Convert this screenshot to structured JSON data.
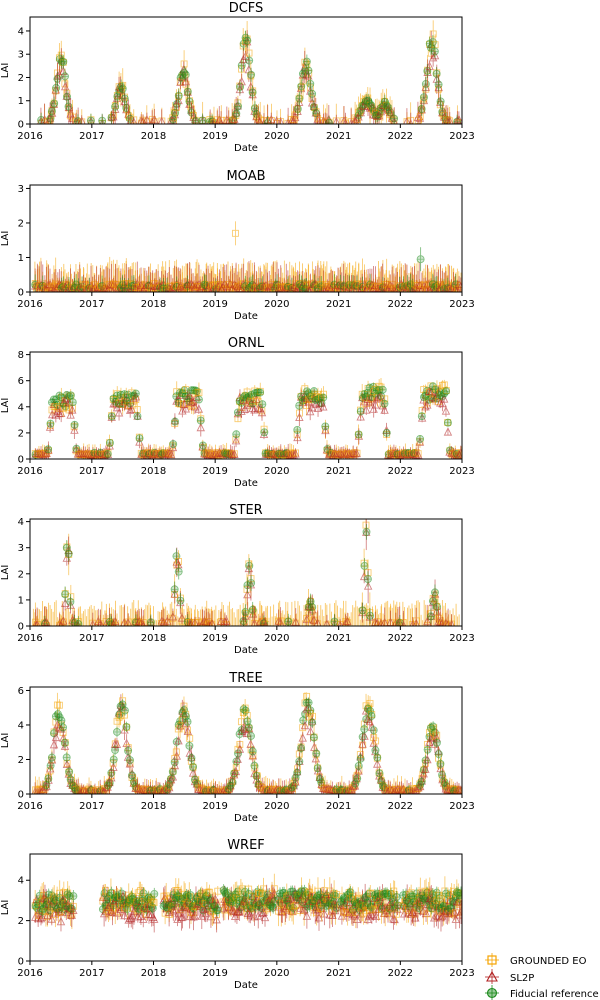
{
  "chart_data": [
    {
      "type": "scatter",
      "title": "DCFS",
      "xlabel": "Date",
      "ylabel": "LAI",
      "xlim": [
        "2016-01-01",
        "2023-01-01"
      ],
      "ylim": [
        0,
        4.6
      ],
      "yticks": [
        0,
        1,
        2,
        3,
        4
      ],
      "xticks": [
        "2016",
        "2017",
        "2018",
        "2019",
        "2020",
        "2021",
        "2022",
        "2023"
      ],
      "seasons": [
        {
          "peak": "2016-07-01",
          "half_width_days": 45,
          "height": 2.6
        },
        {
          "peak": "2017-06-20",
          "half_width_days": 40,
          "height": 1.6
        },
        {
          "peak": "2018-06-25",
          "half_width_days": 45,
          "height": 2.2
        },
        {
          "peak": "2019-07-01",
          "half_width_days": 45,
          "height": 3.5
        },
        {
          "peak": "2020-06-20",
          "half_width_days": 50,
          "height": 2.3
        },
        {
          "peak": "2021-06-15",
          "half_width_days": 55,
          "height": 0.9
        },
        {
          "peak": "2021-10-01",
          "half_width_days": 40,
          "height": 0.8
        },
        {
          "peak": "2022-07-05",
          "half_width_days": 50,
          "height": 3.5
        }
      ],
      "baseline": 0.1,
      "series": [
        {
          "name": "GROUNDED EO",
          "color": "#f5a300",
          "marker": "square"
        },
        {
          "name": "SL2P",
          "color": "#b22222",
          "marker": "triangle"
        },
        {
          "name": "Fiducial reference",
          "color": "#1a8a1a",
          "marker": "circle-plus"
        }
      ]
    },
    {
      "type": "scatter",
      "title": "MOAB",
      "xlabel": "Date",
      "ylabel": "LAI",
      "xlim": [
        "2016-01-01",
        "2023-01-01"
      ],
      "ylim": [
        0,
        3.1
      ],
      "yticks": [
        0,
        1,
        2,
        3
      ],
      "xticks": [
        "2016",
        "2017",
        "2018",
        "2019",
        "2020",
        "2021",
        "2022",
        "2023"
      ],
      "seasons": [],
      "baseline": 0.15,
      "noise_spikes": true,
      "outliers": [
        {
          "x": "2019-05-01",
          "y": 1.7
        },
        {
          "x": "2022-05-01",
          "y": 0.95
        }
      ]
    },
    {
      "type": "scatter",
      "title": "ORNL",
      "xlabel": "Date",
      "ylabel": "LAI",
      "xlim": [
        "2016-01-01",
        "2023-01-01"
      ],
      "ylim": [
        0,
        8.2
      ],
      "yticks": [
        0,
        2,
        4,
        6,
        8
      ],
      "xticks": [
        "2016",
        "2017",
        "2018",
        "2019",
        "2020",
        "2021",
        "2022",
        "2023"
      ],
      "plateaus": [
        {
          "start": "2016-04-15",
          "end": "2016-10-01",
          "height": 4.0
        },
        {
          "start": "2017-04-10",
          "end": "2017-10-15",
          "height": 4.2
        },
        {
          "start": "2018-04-20",
          "end": "2018-10-20",
          "height": 4.3
        },
        {
          "start": "2019-04-25",
          "end": "2019-10-25",
          "height": 4.2
        },
        {
          "start": "2020-04-20",
          "end": "2020-10-25",
          "height": 4.3
        },
        {
          "start": "2021-04-20",
          "end": "2021-10-20",
          "height": 4.5
        },
        {
          "start": "2022-04-20",
          "end": "2022-10-20",
          "height": 4.6
        }
      ],
      "baseline": 0.4
    },
    {
      "type": "scatter",
      "title": "STER",
      "xlabel": "Date",
      "ylabel": "LAI",
      "xlim": [
        "2016-01-01",
        "2023-01-01"
      ],
      "ylim": [
        0,
        4.1
      ],
      "yticks": [
        0,
        1,
        2,
        3,
        4
      ],
      "xticks": [
        "2016",
        "2017",
        "2018",
        "2019",
        "2020",
        "2021",
        "2022",
        "2023"
      ],
      "seasons": [
        {
          "peak": "2016-08-10",
          "half_width_days": 18,
          "height": 3.1
        },
        {
          "peak": "2018-05-20",
          "half_width_days": 20,
          "height": 2.6
        },
        {
          "peak": "2019-07-20",
          "half_width_days": 20,
          "height": 2.2
        },
        {
          "peak": "2020-07-15",
          "half_width_days": 20,
          "height": 0.9
        },
        {
          "peak": "2021-06-10",
          "half_width_days": 18,
          "height": 3.4
        },
        {
          "peak": "2022-07-20",
          "half_width_days": 20,
          "height": 1.1
        }
      ],
      "baseline": 0.1,
      "noise_spikes": true
    },
    {
      "type": "scatter",
      "title": "TREE",
      "xlabel": "Date",
      "ylabel": "LAI",
      "xlim": [
        "2016-01-01",
        "2023-01-01"
      ],
      "ylim": [
        0,
        6.2
      ],
      "yticks": [
        0,
        2,
        4,
        6
      ],
      "xticks": [
        "2016",
        "2017",
        "2018",
        "2019",
        "2020",
        "2021",
        "2022",
        "2023"
      ],
      "seasons": [
        {
          "peak": "2016-06-20",
          "half_width_days": 55,
          "height": 4.6
        },
        {
          "peak": "2017-06-25",
          "half_width_days": 55,
          "height": 5.0
        },
        {
          "peak": "2018-06-25",
          "half_width_days": 60,
          "height": 4.7
        },
        {
          "peak": "2019-06-25",
          "half_width_days": 60,
          "height": 4.5
        },
        {
          "peak": "2020-07-01",
          "half_width_days": 60,
          "height": 5.0
        },
        {
          "peak": "2021-06-25",
          "half_width_days": 60,
          "height": 4.8
        },
        {
          "peak": "2022-07-10",
          "half_width_days": 55,
          "height": 3.8
        }
      ],
      "baseline": 0.2
    },
    {
      "type": "scatter",
      "title": "WREF",
      "xlabel": "Date",
      "ylabel": "LAI",
      "xlim": [
        "2016-01-01",
        "2023-01-01"
      ],
      "ylim": [
        0,
        5.3
      ],
      "yticks": [
        0,
        2,
        4
      ],
      "xticks": [
        "2016",
        "2017",
        "2018",
        "2019",
        "2020",
        "2021",
        "2022",
        "2023"
      ],
      "bands": [
        {
          "start": "2016-01-20",
          "end": "2016-09-15",
          "height": 2.8
        },
        {
          "start": "2017-03-01",
          "end": "2018-01-10",
          "height": 2.9
        },
        {
          "start": "2018-03-01",
          "end": "2019-01-15",
          "height": 2.9
        },
        {
          "start": "2019-02-15",
          "end": "2019-12-20",
          "height": 3.0
        },
        {
          "start": "2020-01-10",
          "end": "2020-12-20",
          "height": 3.0
        },
        {
          "start": "2021-01-10",
          "end": "2021-12-20",
          "height": 2.9
        },
        {
          "start": "2022-01-10",
          "end": "2022-12-25",
          "height": 2.9
        }
      ]
    }
  ],
  "legend": {
    "placement": "bottom-right",
    "entries": [
      {
        "label": "GROUNDED EO",
        "color": "#f5a300",
        "marker": "square"
      },
      {
        "label": "SL2P",
        "color": "#b22222",
        "marker": "triangle"
      },
      {
        "label": "Fiducial reference",
        "color": "#1a8a1a",
        "marker": "circle-plus"
      }
    ]
  }
}
